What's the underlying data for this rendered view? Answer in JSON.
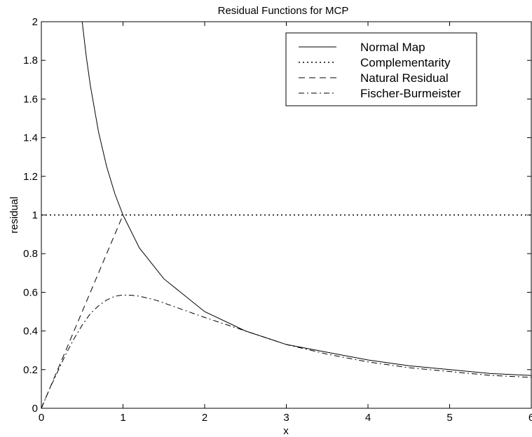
{
  "chart_data": {
    "type": "line",
    "title": "Residual Functions for MCP",
    "xlabel": "x",
    "ylabel": "residual",
    "xlim": [
      0,
      6
    ],
    "ylim": [
      0,
      2
    ],
    "xticks": [
      "0",
      "1",
      "2",
      "3",
      "4",
      "5",
      "6"
    ],
    "yticks": [
      "0",
      "0.2",
      "0.4",
      "0.6",
      "0.8",
      "1",
      "1.2",
      "1.4",
      "1.6",
      "1.8",
      "2"
    ],
    "grid": false,
    "legend_position": "top-right",
    "series": [
      {
        "name": "Normal Map",
        "style": "solid",
        "x": [
          0.5,
          0.55,
          0.6,
          0.7,
          0.8,
          0.9,
          1.0,
          1.2,
          1.5,
          2.0,
          2.5,
          3.0,
          3.5,
          4.0,
          4.5,
          5.0,
          5.5,
          6.0
        ],
        "y": [
          2.0,
          1.82,
          1.67,
          1.43,
          1.25,
          1.11,
          1.0,
          0.83,
          0.67,
          0.5,
          0.4,
          0.33,
          0.29,
          0.25,
          0.22,
          0.2,
          0.18,
          0.17
        ]
      },
      {
        "name": "Complementarity",
        "style": "dotted",
        "x": [
          0,
          6
        ],
        "y": [
          1.0,
          1.0
        ]
      },
      {
        "name": "Natural Residual",
        "style": "dashed",
        "x": [
          0,
          0.25,
          0.5,
          0.75,
          1.0
        ],
        "y": [
          0,
          0.25,
          0.5,
          0.75,
          1.0
        ]
      },
      {
        "name": "Fischer-Burmeister",
        "style": "dashdot",
        "x": [
          0,
          0.1,
          0.2,
          0.3,
          0.4,
          0.5,
          0.6,
          0.7,
          0.8,
          0.9,
          1.0,
          1.1,
          1.2,
          1.4,
          1.6,
          1.8,
          2.0,
          2.5,
          3.0,
          3.5,
          4.0,
          4.5,
          5.0,
          5.5,
          6.0
        ],
        "y": [
          0,
          0.1,
          0.19,
          0.28,
          0.36,
          0.43,
          0.49,
          0.53,
          0.56,
          0.58,
          0.586,
          0.585,
          0.58,
          0.56,
          0.53,
          0.5,
          0.47,
          0.4,
          0.33,
          0.28,
          0.24,
          0.21,
          0.19,
          0.17,
          0.16
        ]
      }
    ]
  }
}
